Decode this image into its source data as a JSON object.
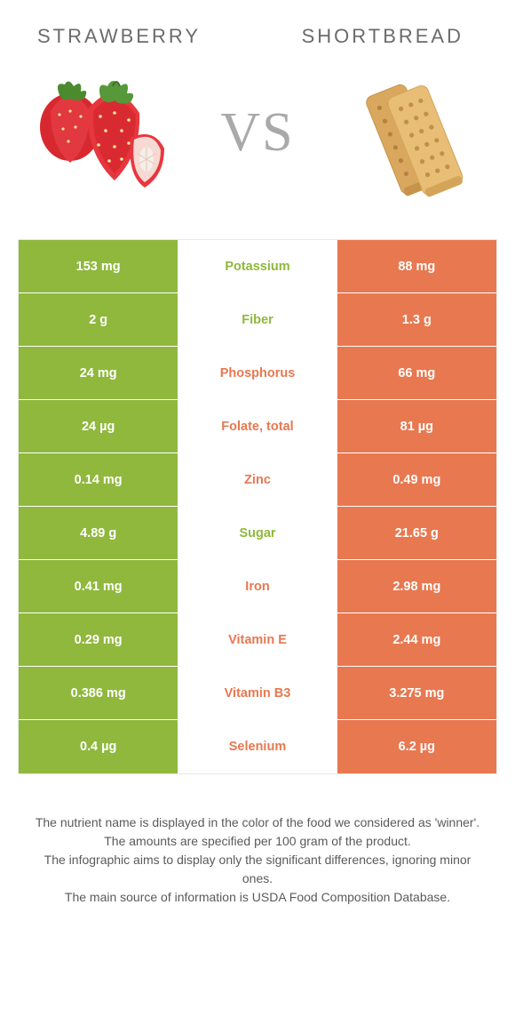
{
  "header": {
    "left": "STRAWBERRY",
    "right": "SHORTBREAD"
  },
  "vs": "VS",
  "colors": {
    "left": "#8fb83d",
    "right": "#e87850",
    "mid_bg": "#ffffff",
    "cell_text": "#ffffff",
    "header_text": "#6b6b6b",
    "vs_text": "#a9a9a9",
    "footnote_text": "#5a5a5a",
    "border": "#e8e8e8"
  },
  "rows": [
    {
      "left": "153 mg",
      "mid": "Potassium",
      "right": "88 mg",
      "winner": "left"
    },
    {
      "left": "2 g",
      "mid": "Fiber",
      "right": "1.3 g",
      "winner": "left"
    },
    {
      "left": "24 mg",
      "mid": "Phosphorus",
      "right": "66 mg",
      "winner": "right"
    },
    {
      "left": "24 µg",
      "mid": "Folate, total",
      "right": "81 µg",
      "winner": "right"
    },
    {
      "left": "0.14 mg",
      "mid": "Zinc",
      "right": "0.49 mg",
      "winner": "right"
    },
    {
      "left": "4.89 g",
      "mid": "Sugar",
      "right": "21.65 g",
      "winner": "left"
    },
    {
      "left": "0.41 mg",
      "mid": "Iron",
      "right": "2.98 mg",
      "winner": "right"
    },
    {
      "left": "0.29 mg",
      "mid": "Vitamin E",
      "right": "2.44 mg",
      "winner": "right"
    },
    {
      "left": "0.386 mg",
      "mid": "Vitamin B3",
      "right": "3.275 mg",
      "winner": "right"
    },
    {
      "left": "0.4 µg",
      "mid": "Selenium",
      "right": "6.2 µg",
      "winner": "right"
    }
  ],
  "footnote": {
    "l1": "The nutrient name is displayed in the color of the food we considered as 'winner'.",
    "l2": "The amounts are specified per 100 gram of the product.",
    "l3": "The infographic aims to display only the significant differences, ignoring minor ones.",
    "l4": "The main source of information is USDA Food Composition Database."
  }
}
